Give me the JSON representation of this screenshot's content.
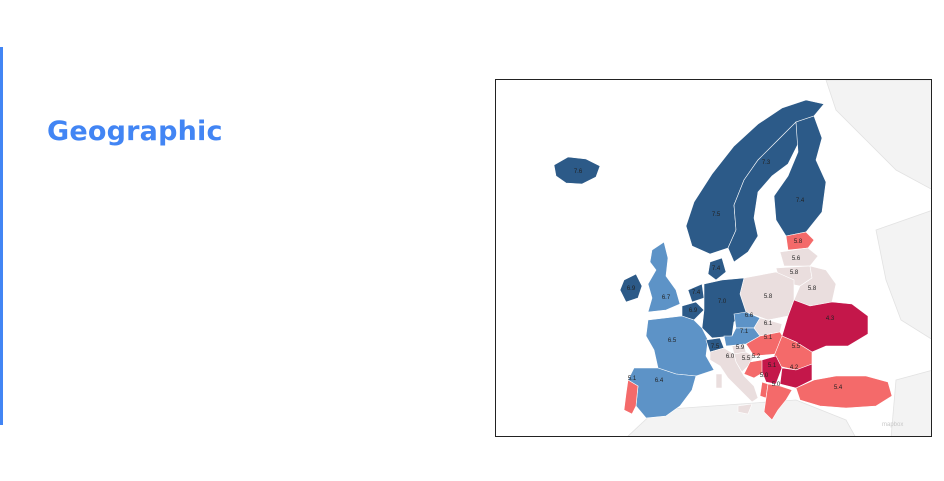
{
  "slide": {
    "title": "Geographic"
  },
  "map": {
    "legend_colors": {
      "very_high": "#2c5a88",
      "high": "#5d93c7",
      "mid_high": "#9ec3e3",
      "neutral": "#eadede",
      "low": "#f46a6a",
      "very_low": "#c4174a"
    },
    "regions": [
      {
        "country": "Iceland",
        "value": "7.6"
      },
      {
        "country": "Norway",
        "value": "7.5"
      },
      {
        "country": "Sweden",
        "value": "7.3"
      },
      {
        "country": "Finland",
        "value": "7.4"
      },
      {
        "country": "Ireland",
        "value": "6.9"
      },
      {
        "country": "United Kingdom",
        "value": "6.7"
      },
      {
        "country": "Denmark",
        "value": "7.4"
      },
      {
        "country": "Netherlands",
        "value": "7.4"
      },
      {
        "country": "Belgium",
        "value": "6.9"
      },
      {
        "country": "Germany",
        "value": "7.0"
      },
      {
        "country": "France",
        "value": "6.5"
      },
      {
        "country": "Spain",
        "value": "6.4"
      },
      {
        "country": "Portugal",
        "value": "5.1"
      },
      {
        "country": "Switzerland",
        "value": "7.5"
      },
      {
        "country": "Austria",
        "value": "7.1"
      },
      {
        "country": "Czechia",
        "value": "6.6"
      },
      {
        "country": "Italy",
        "value": "6.0"
      },
      {
        "country": "Slovakia",
        "value": "6.1"
      },
      {
        "country": "Poland",
        "value": "5.8"
      },
      {
        "country": "Estonia",
        "value": "5.8"
      },
      {
        "country": "Latvia",
        "value": "5.6"
      },
      {
        "country": "Lithuania",
        "value": "5.8"
      },
      {
        "country": "Belarus",
        "value": "5.8"
      },
      {
        "country": "Ukraine",
        "value": "4.3"
      },
      {
        "country": "Hungary",
        "value": "5.1"
      },
      {
        "country": "Romania",
        "value": "5.5"
      },
      {
        "country": "Slovenia",
        "value": "5.9"
      },
      {
        "country": "Croatia",
        "value": "5.5"
      },
      {
        "country": "Bosnia and Herzegovina",
        "value": "5.2"
      },
      {
        "country": "Serbia",
        "value": "5.1"
      },
      {
        "country": "Bulgaria",
        "value": "4.2"
      },
      {
        "country": "Albania",
        "value": "5.0"
      },
      {
        "country": "Greece",
        "value": "5.0"
      },
      {
        "country": "Turkey",
        "value": "5.4"
      }
    ],
    "watermark": "mapbox"
  }
}
